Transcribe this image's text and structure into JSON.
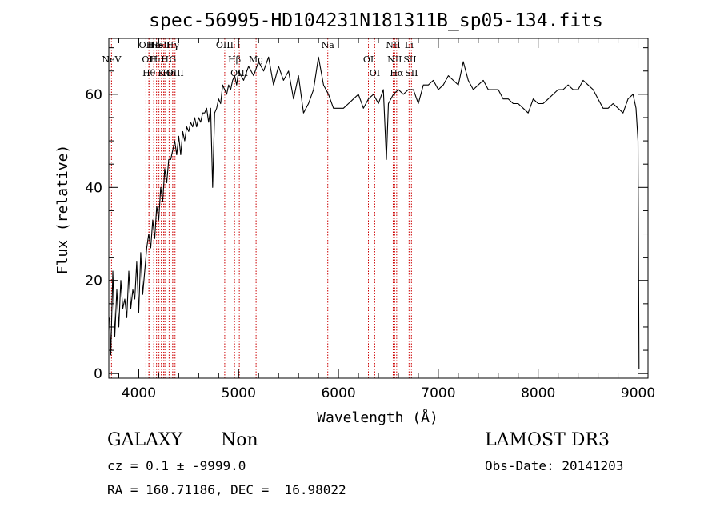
{
  "chart_data": {
    "type": "line",
    "title": "spec-56995-HD104231N181311B_sp05-134.fits",
    "xlabel": "Wavelength (Å)",
    "ylabel": "Flux (relative)",
    "xlim": [
      3700,
      9100
    ],
    "ylim": [
      -1,
      72
    ],
    "x_ticks": [
      4000,
      5000,
      6000,
      7000,
      8000,
      9000
    ],
    "y_ticks": [
      0,
      20,
      40,
      60
    ],
    "x_tick_labels": [
      "4000",
      "5000",
      "6000",
      "7000",
      "8000",
      "9000"
    ],
    "y_tick_labels": [
      "0",
      "20",
      "40",
      "60"
    ],
    "grid": false,
    "line_color": "#000000",
    "marker_color": "#cc0000",
    "series": [
      {
        "x": [
          3700,
          3720,
          3740,
          3760,
          3780,
          3800,
          3820,
          3840,
          3860,
          3880,
          3900,
          3920,
          3940,
          3960,
          3980,
          4000,
          4020,
          4040,
          4060,
          4080,
          4100,
          4120,
          4140,
          4160,
          4180,
          4200,
          4220,
          4240,
          4260,
          4280,
          4300,
          4320,
          4340,
          4360,
          4380,
          4400,
          4420,
          4440,
          4460,
          4480,
          4500,
          4520,
          4540,
          4560,
          4580,
          4600,
          4620,
          4640,
          4660,
          4680,
          4700,
          4720,
          4740,
          4760,
          4780,
          4800,
          4820,
          4840,
          4860,
          4880,
          4900,
          4920,
          4940,
          4960,
          4980,
          5000,
          5050,
          5100,
          5150,
          5200,
          5250,
          5300,
          5350,
          5400,
          5450,
          5500,
          5550,
          5600,
          5650,
          5700,
          5750,
          5800,
          5850,
          5900,
          5950,
          6000,
          6050,
          6100,
          6150,
          6200,
          6250,
          6300,
          6350,
          6400,
          6450,
          6480,
          6500,
          6550,
          6600,
          6650,
          6700,
          6750,
          6800,
          6850,
          6900,
          6950,
          7000,
          7050,
          7100,
          7150,
          7200,
          7250,
          7300,
          7350,
          7400,
          7450,
          7500,
          7550,
          7600,
          7650,
          7700,
          7750,
          7800,
          7850,
          7900,
          7950,
          8000,
          8050,
          8100,
          8150,
          8200,
          8250,
          8300,
          8350,
          8400,
          8450,
          8500,
          8550,
          8600,
          8650,
          8700,
          8750,
          8800,
          8850,
          8900,
          8950,
          8980,
          9000,
          9010
        ],
        "y": [
          12,
          4,
          22,
          8,
          18,
          10,
          20,
          14,
          16,
          12,
          22,
          14,
          18,
          16,
          24,
          13,
          26,
          17,
          22,
          27,
          30,
          27,
          33,
          29,
          36,
          33,
          40,
          37,
          44,
          41,
          46,
          46,
          48,
          50,
          47,
          51,
          47,
          52,
          50,
          53,
          52,
          54,
          53,
          55,
          53,
          55,
          54,
          56,
          56,
          57,
          54,
          57,
          40,
          56,
          57,
          59,
          58,
          62,
          61,
          60,
          62,
          61,
          63,
          64,
          62,
          65,
          63,
          66,
          64,
          67,
          65,
          68,
          62,
          66,
          63,
          65,
          59,
          64,
          56,
          58,
          61,
          68,
          62,
          60,
          57,
          57,
          57,
          58,
          59,
          60,
          57,
          59,
          60,
          58,
          61,
          46,
          58,
          60,
          61,
          60,
          61,
          61,
          58,
          62,
          62,
          63,
          61,
          62,
          64,
          63,
          62,
          67,
          63,
          61,
          62,
          63,
          61,
          61,
          61,
          59,
          59,
          58,
          58,
          57,
          56,
          59,
          58,
          58,
          59,
          60,
          61,
          61,
          62,
          61,
          61,
          63,
          62,
          61,
          59,
          57,
          57,
          58,
          57,
          56,
          59,
          60,
          57,
          50,
          1
        ]
      }
    ],
    "line_markers": [
      {
        "x": 3727,
        "label": "NeV",
        "row": 1
      },
      {
        "x": 4072,
        "label": "OII",
        "row": 0
      },
      {
        "x": 4102,
        "label": "OII",
        "row": 1
      },
      {
        "x": 4102,
        "label": "Hθ",
        "row": 2
      },
      {
        "x": 4150,
        "label": "He",
        "row": 0
      },
      {
        "x": 4178,
        "label": "Hη",
        "row": 1
      },
      {
        "x": 4202,
        "label": "HeI",
        "row": 0
      },
      {
        "x": 4226,
        "label": "K",
        "row": 2
      },
      {
        "x": 4250,
        "label": "SII",
        "row": 0
      },
      {
        "x": 4262,
        "label": "H",
        "row": 1
      },
      {
        "x": 4304,
        "label": "Hδ",
        "row": 2
      },
      {
        "x": 4340,
        "label": "Hγ",
        "row": 0
      },
      {
        "x": 4340,
        "label": "G",
        "row": 1
      },
      {
        "x": 4363,
        "label": "OIII",
        "row": 2
      },
      {
        "x": 4861,
        "label": "OIII",
        "row": 0
      },
      {
        "x": 4959,
        "label": "Hβ",
        "row": 1
      },
      {
        "x": 5007,
        "label": "OIII",
        "row": 2
      },
      {
        "x": 5175,
        "label": "Mg",
        "row": 1
      },
      {
        "x": 5893,
        "label": "Na",
        "row": 0
      },
      {
        "x": 6300,
        "label": "OI",
        "row": 1
      },
      {
        "x": 6363,
        "label": "OI",
        "row": 2
      },
      {
        "x": 6548,
        "label": "NII",
        "row": 0
      },
      {
        "x": 6563,
        "label": "NII",
        "row": 1
      },
      {
        "x": 6583,
        "label": "Hα",
        "row": 2
      },
      {
        "x": 6707,
        "label": "Li",
        "row": 0
      },
      {
        "x": 6716,
        "label": "SII",
        "row": 1
      },
      {
        "x": 6731,
        "label": "SII",
        "row": 2
      }
    ]
  },
  "info": {
    "object_class": "GALAXY",
    "subclass": "Non",
    "survey": "LAMOST DR3",
    "cz_line": "cz = 0.1 ± -9999.0",
    "obs_date": "Obs-Date: 20141203",
    "radec_line": "RA = 160.71186, DEC =  16.98022"
  }
}
